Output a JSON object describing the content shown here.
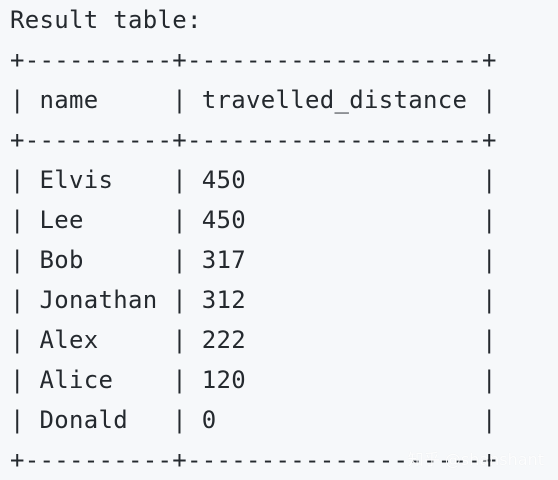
{
  "heading": "Result table:",
  "table": {
    "border_line": "+----------+--------------------+",
    "columns": [
      "name",
      "travelled_distance"
    ],
    "rows": [
      [
        "Elvis",
        "450"
      ],
      [
        "Lee",
        "450"
      ],
      [
        "Bob",
        "317"
      ],
      [
        "Jonathan",
        "312"
      ],
      [
        "Alex",
        "222"
      ],
      [
        "Alice",
        "120"
      ],
      [
        "Donald",
        "0"
      ]
    ]
  },
  "watermark": "知乎 @shanshant",
  "colors": {
    "text": "#24292e",
    "background": "#f6f8fa"
  }
}
